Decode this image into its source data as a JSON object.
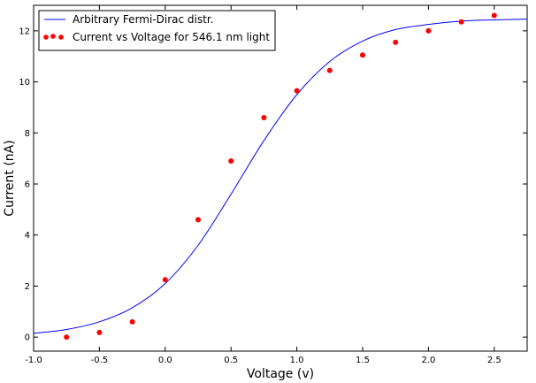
{
  "chart_data": {
    "type": "scatter",
    "title": "",
    "xlabel": "Voltage (v)",
    "ylabel": "Current (nA)",
    "xlim": [
      -1.0,
      2.75
    ],
    "ylim": [
      -0.55,
      13.0
    ],
    "xticks": [
      -1.0,
      -0.5,
      0.0,
      0.5,
      1.0,
      1.5,
      2.0,
      2.5
    ],
    "yticks": [
      0,
      2,
      4,
      6,
      8,
      10,
      12
    ],
    "grid": false,
    "legend_position": "top-left",
    "series": [
      {
        "name": "Arbitrary Fermi-Dirac distr.",
        "kind": "line",
        "color": "#0000ff",
        "x": [
          -1.0,
          -0.75,
          -0.5,
          -0.25,
          0.0,
          0.25,
          0.5,
          0.75,
          1.0,
          1.25,
          1.5,
          1.75,
          2.0,
          2.25,
          2.5,
          2.75
        ],
        "y": [
          0.15,
          0.3,
          0.6,
          1.15,
          2.1,
          3.6,
          5.6,
          7.7,
          9.5,
          10.8,
          11.6,
          12.05,
          12.25,
          12.38,
          12.43,
          12.46
        ]
      },
      {
        "name": "Current vs Voltage for 546.1 nm light",
        "kind": "scatter",
        "color": "#ff0000",
        "x": [
          -0.75,
          -0.5,
          -0.25,
          0.0,
          0.25,
          0.5,
          0.75,
          1.0,
          1.25,
          1.5,
          1.75,
          2.0,
          2.25,
          2.5
        ],
        "y": [
          0.0,
          0.18,
          0.6,
          2.25,
          4.6,
          6.9,
          8.6,
          9.65,
          10.45,
          11.05,
          11.55,
          12.0,
          12.35,
          12.6
        ]
      }
    ]
  }
}
